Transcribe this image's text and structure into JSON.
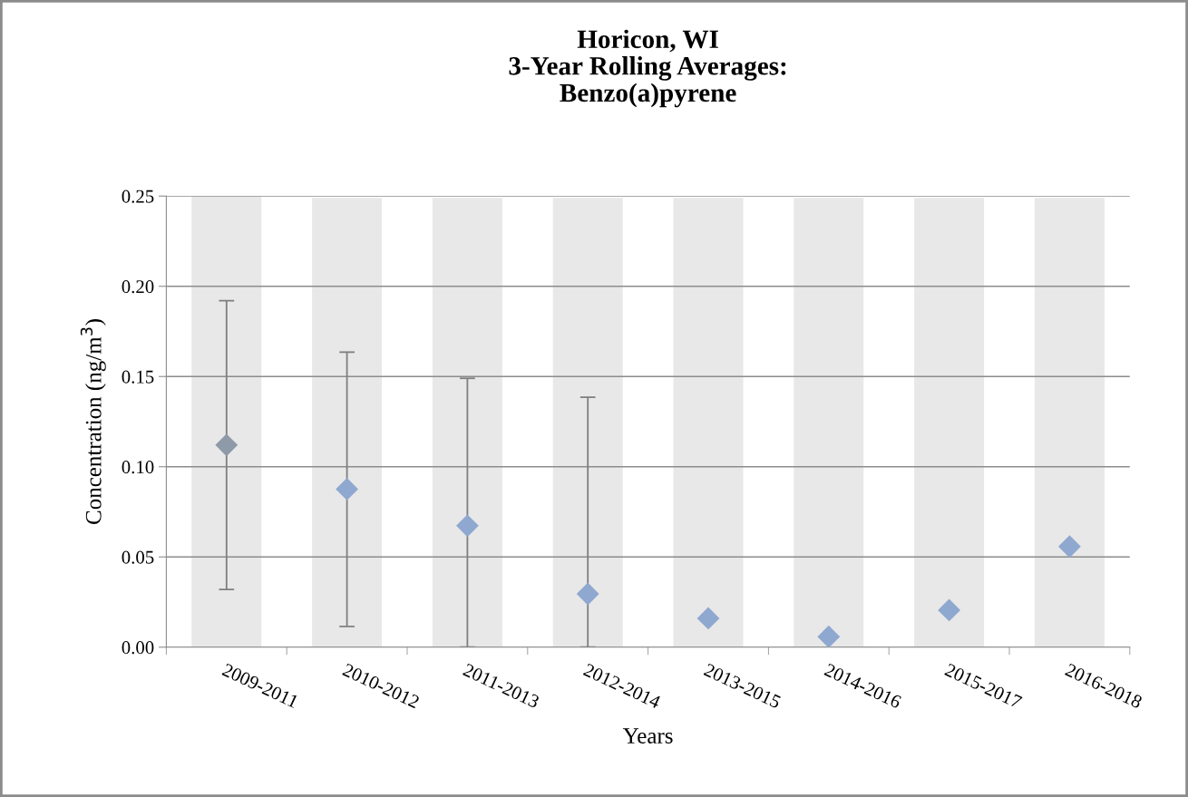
{
  "chart_data": {
    "type": "scatter",
    "title": "Horicon, WI\n3-Year Rolling Averages:\nBenzo(a)pyrene",
    "xlabel": "Years",
    "ylabel": "Concentration (ng/m$^{3}$)",
    "categories": [
      "2009-2011",
      "2010-2012",
      "2011-2013",
      "2012-2014",
      "2013-2015",
      "2014-2016",
      "2015-2017",
      "2016-2018"
    ],
    "series": [
      {
        "type": "bar",
        "color": "#e8e8e8",
        "values": [
          0.25,
          0.249,
          0.249,
          0.249,
          0.249,
          0.249,
          0.249,
          0.249
        ]
      },
      {
        "colors": [
          "#8e9aa8",
          "#8fa8d0",
          "#8fa8d0",
          "#8fa8d0",
          "#8fa8d0",
          "#8fa8d0",
          "#8fa8d0",
          "#8fa8d0"
        ],
        "values": [
          0.112,
          0.0876,
          0.0673,
          0.0295,
          0.016,
          0.0058,
          0.0205,
          0.0558
        ],
        "errors": [
          [
            0.032,
            0.192
          ],
          [
            0.0115,
            0.1635
          ],
          [
            0,
            0.149
          ],
          [
            0,
            0.1385
          ],
          null,
          null,
          null,
          null
        ]
      }
    ],
    "ylim": [
      0,
      0.25
    ],
    "yticks": [
      {
        "value": 0,
        "label": "0.00"
      },
      {
        "value": 0.05,
        "label": "0.05"
      },
      {
        "value": 0.1,
        "label": "0.10"
      },
      {
        "value": 0.15,
        "label": "0.15"
      },
      {
        "value": 0.2,
        "label": "0.20"
      },
      {
        "value": 0.25,
        "label": "0.25"
      }
    ],
    "grid": "y",
    "marker": "diamond",
    "legend": false
  }
}
